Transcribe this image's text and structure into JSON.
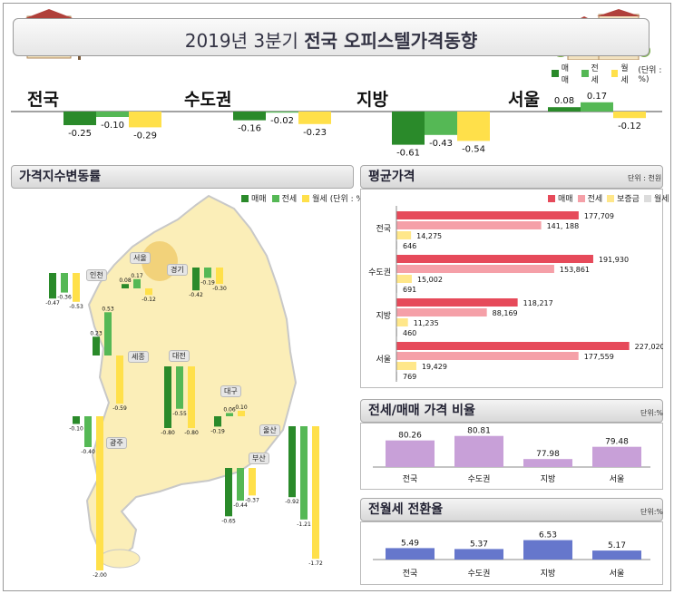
{
  "header": {
    "title_plain": "2019년 3분기 ",
    "title_bold": "전국 오피스텔가격동향"
  },
  "colors": {
    "sale": "#2a8a2a",
    "jeonse": "#55b855",
    "monthly": "#ffe04a",
    "avgSale": "#e64a5a",
    "avgJeonse": "#f5a0a8",
    "avgDeposit": "#ffe78a",
    "avgMonthly": "#dcdcdc",
    "ratio": "#c8a0d8",
    "conv": "#6677cc"
  },
  "top_legend": {
    "sale": "매매",
    "jeonse": "전세",
    "monthly": "월세",
    "unit": "(단위 : %)"
  },
  "top_chart": {
    "groups": [
      {
        "region": "전국",
        "values": [
          -0.25,
          -0.1,
          -0.29
        ],
        "labels": [
          "-0.25",
          "-0.10",
          "-0.29"
        ]
      },
      {
        "region": "수도권",
        "values": [
          -0.16,
          -0.02,
          -0.23
        ],
        "labels": [
          "-0.16",
          "-0.02",
          "-0.23"
        ]
      },
      {
        "region": "지방",
        "values": [
          -0.61,
          -0.43,
          -0.54
        ],
        "labels": [
          "-0.61",
          "-0.43",
          "-0.54"
        ]
      },
      {
        "region": "서울",
        "values": [
          0.08,
          0.17,
          -0.12
        ],
        "labels": [
          "0.08",
          "0.17",
          "-0.12"
        ]
      }
    ]
  },
  "map_section": {
    "title": "가격지수변동률",
    "legend": {
      "sale": "매매",
      "jeonse": "전세",
      "monthly": "월세",
      "unit": "(단위 : %)"
    },
    "places": [
      {
        "name": "인천",
        "values": [
          -0.47,
          -0.36,
          -0.53
        ],
        "labels": [
          "-0.47",
          "-0.36",
          "-0.53"
        ]
      },
      {
        "name": "서울",
        "values": [
          0.08,
          0.17,
          -0.12
        ],
        "labels": [
          "0.08",
          "0.17",
          "-0.12"
        ]
      },
      {
        "name": "경기",
        "values": [
          -0.42,
          -0.19,
          -0.3
        ],
        "labels": [
          "-0.42",
          "-0.19",
          "-0.30"
        ]
      },
      {
        "name": "세종",
        "values": [
          0.23,
          0.53,
          -0.59
        ],
        "labels": [
          "0.23",
          "0.53",
          "-0.59"
        ]
      },
      {
        "name": "대전",
        "values": [
          -0.8,
          -0.55,
          -0.8
        ],
        "labels": [
          "-0.80",
          "-0.55",
          "-0.80"
        ]
      },
      {
        "name": "대구",
        "values": [
          -0.19,
          0.06,
          0.1
        ],
        "labels": [
          "-0.19",
          "0.06",
          "0.10"
        ]
      },
      {
        "name": "광주",
        "values": [
          -0.1,
          -0.4,
          -2.0
        ],
        "labels": [
          "-0.10",
          "-0.40",
          "-2.00"
        ]
      },
      {
        "name": "울산",
        "values": [
          -0.92,
          -1.21,
          -1.72
        ],
        "labels": [
          "-0.92",
          "-1.21",
          "-1.72"
        ]
      },
      {
        "name": "부산",
        "values": [
          -0.65,
          -0.44,
          -0.37
        ],
        "labels": [
          "-0.65",
          "-0.44",
          "-0.37"
        ]
      }
    ]
  },
  "avg_price": {
    "title": "평균가격",
    "unit": "단위 : 천원",
    "legend": [
      "매매",
      "전세",
      "보증금",
      "월세"
    ],
    "groups": [
      {
        "region": "전국",
        "values": [
          177709,
          141188,
          14275,
          646
        ],
        "labels": [
          "177,709",
          "141, 188",
          "14,275",
          "646"
        ]
      },
      {
        "region": "수도권",
        "values": [
          191930,
          153861,
          15002,
          691
        ],
        "labels": [
          "191,930",
          "153,861",
          "15,002",
          "691"
        ]
      },
      {
        "region": "지방",
        "values": [
          118217,
          88169,
          11235,
          460
        ],
        "labels": [
          "118,217",
          "88,169",
          "11,235",
          "460"
        ]
      },
      {
        "region": "서울",
        "values": [
          227020,
          177559,
          19429,
          769
        ],
        "labels": [
          "227,020",
          "177,559",
          "19,429",
          "769"
        ]
      }
    ]
  },
  "ratio": {
    "title": "전세/매매 가격 비율",
    "unit": "단위:%",
    "categories": [
      "전국",
      "수도권",
      "지방",
      "서울"
    ],
    "values": [
      80.26,
      80.81,
      77.98,
      79.48
    ],
    "labels": [
      "80.26",
      "80.81",
      "77.98",
      "79.48"
    ]
  },
  "conversion": {
    "title": "전월세 전환율",
    "unit": "단위:%",
    "categories": [
      "전국",
      "수도권",
      "지방",
      "서울"
    ],
    "values": [
      5.49,
      5.37,
      6.53,
      5.17
    ],
    "labels": [
      "5.49",
      "5.37",
      "6.53",
      "5.17"
    ]
  },
  "chart_data": [
    {
      "type": "bar",
      "categories": [
        "전국",
        "수도권",
        "지방",
        "서울"
      ],
      "series": [
        {
          "name": "매매",
          "values": [
            -0.25,
            -0.16,
            -0.61,
            0.08
          ]
        },
        {
          "name": "전세",
          "values": [
            -0.1,
            -0.02,
            -0.43,
            0.17
          ]
        },
        {
          "name": "월세",
          "values": [
            -0.29,
            -0.23,
            -0.54,
            -0.12
          ]
        }
      ]
    },
    {
      "type": "bar",
      "title": "가격지수변동률",
      "categories": [
        "인천",
        "서울",
        "경기",
        "세종",
        "대전",
        "대구",
        "광주",
        "울산",
        "부산"
      ],
      "series": [
        {
          "name": "매매",
          "values": [
            -0.47,
            0.08,
            -0.42,
            0.23,
            -0.8,
            -0.19,
            -0.1,
            -0.92,
            -0.65
          ]
        },
        {
          "name": "전세",
          "values": [
            -0.36,
            0.17,
            -0.19,
            0.53,
            -0.55,
            0.06,
            -0.4,
            -1.21,
            -0.44
          ]
        },
        {
          "name": "월세",
          "values": [
            -0.53,
            -0.12,
            -0.3,
            -0.59,
            -0.8,
            0.1,
            -2.0,
            -1.72,
            -0.37
          ]
        }
      ]
    },
    {
      "type": "bar",
      "title": "평균가격",
      "categories": [
        "전국",
        "수도권",
        "지방",
        "서울"
      ],
      "series": [
        {
          "name": "매매",
          "values": [
            177709,
            191930,
            118217,
            227020
          ]
        },
        {
          "name": "전세",
          "values": [
            141188,
            153861,
            88169,
            177559
          ]
        },
        {
          "name": "보증금",
          "values": [
            14275,
            15002,
            11235,
            19429
          ]
        },
        {
          "name": "월세",
          "values": [
            646,
            691,
            460,
            769
          ]
        }
      ]
    },
    {
      "type": "bar",
      "title": "전세/매매 가격 비율",
      "categories": [
        "전국",
        "수도권",
        "지방",
        "서울"
      ],
      "values": [
        80.26,
        80.81,
        77.98,
        79.48
      ]
    },
    {
      "type": "bar",
      "title": "전월세 전환율",
      "categories": [
        "전국",
        "수도권",
        "지방",
        "서울"
      ],
      "values": [
        5.49,
        5.37,
        6.53,
        5.17
      ]
    }
  ]
}
